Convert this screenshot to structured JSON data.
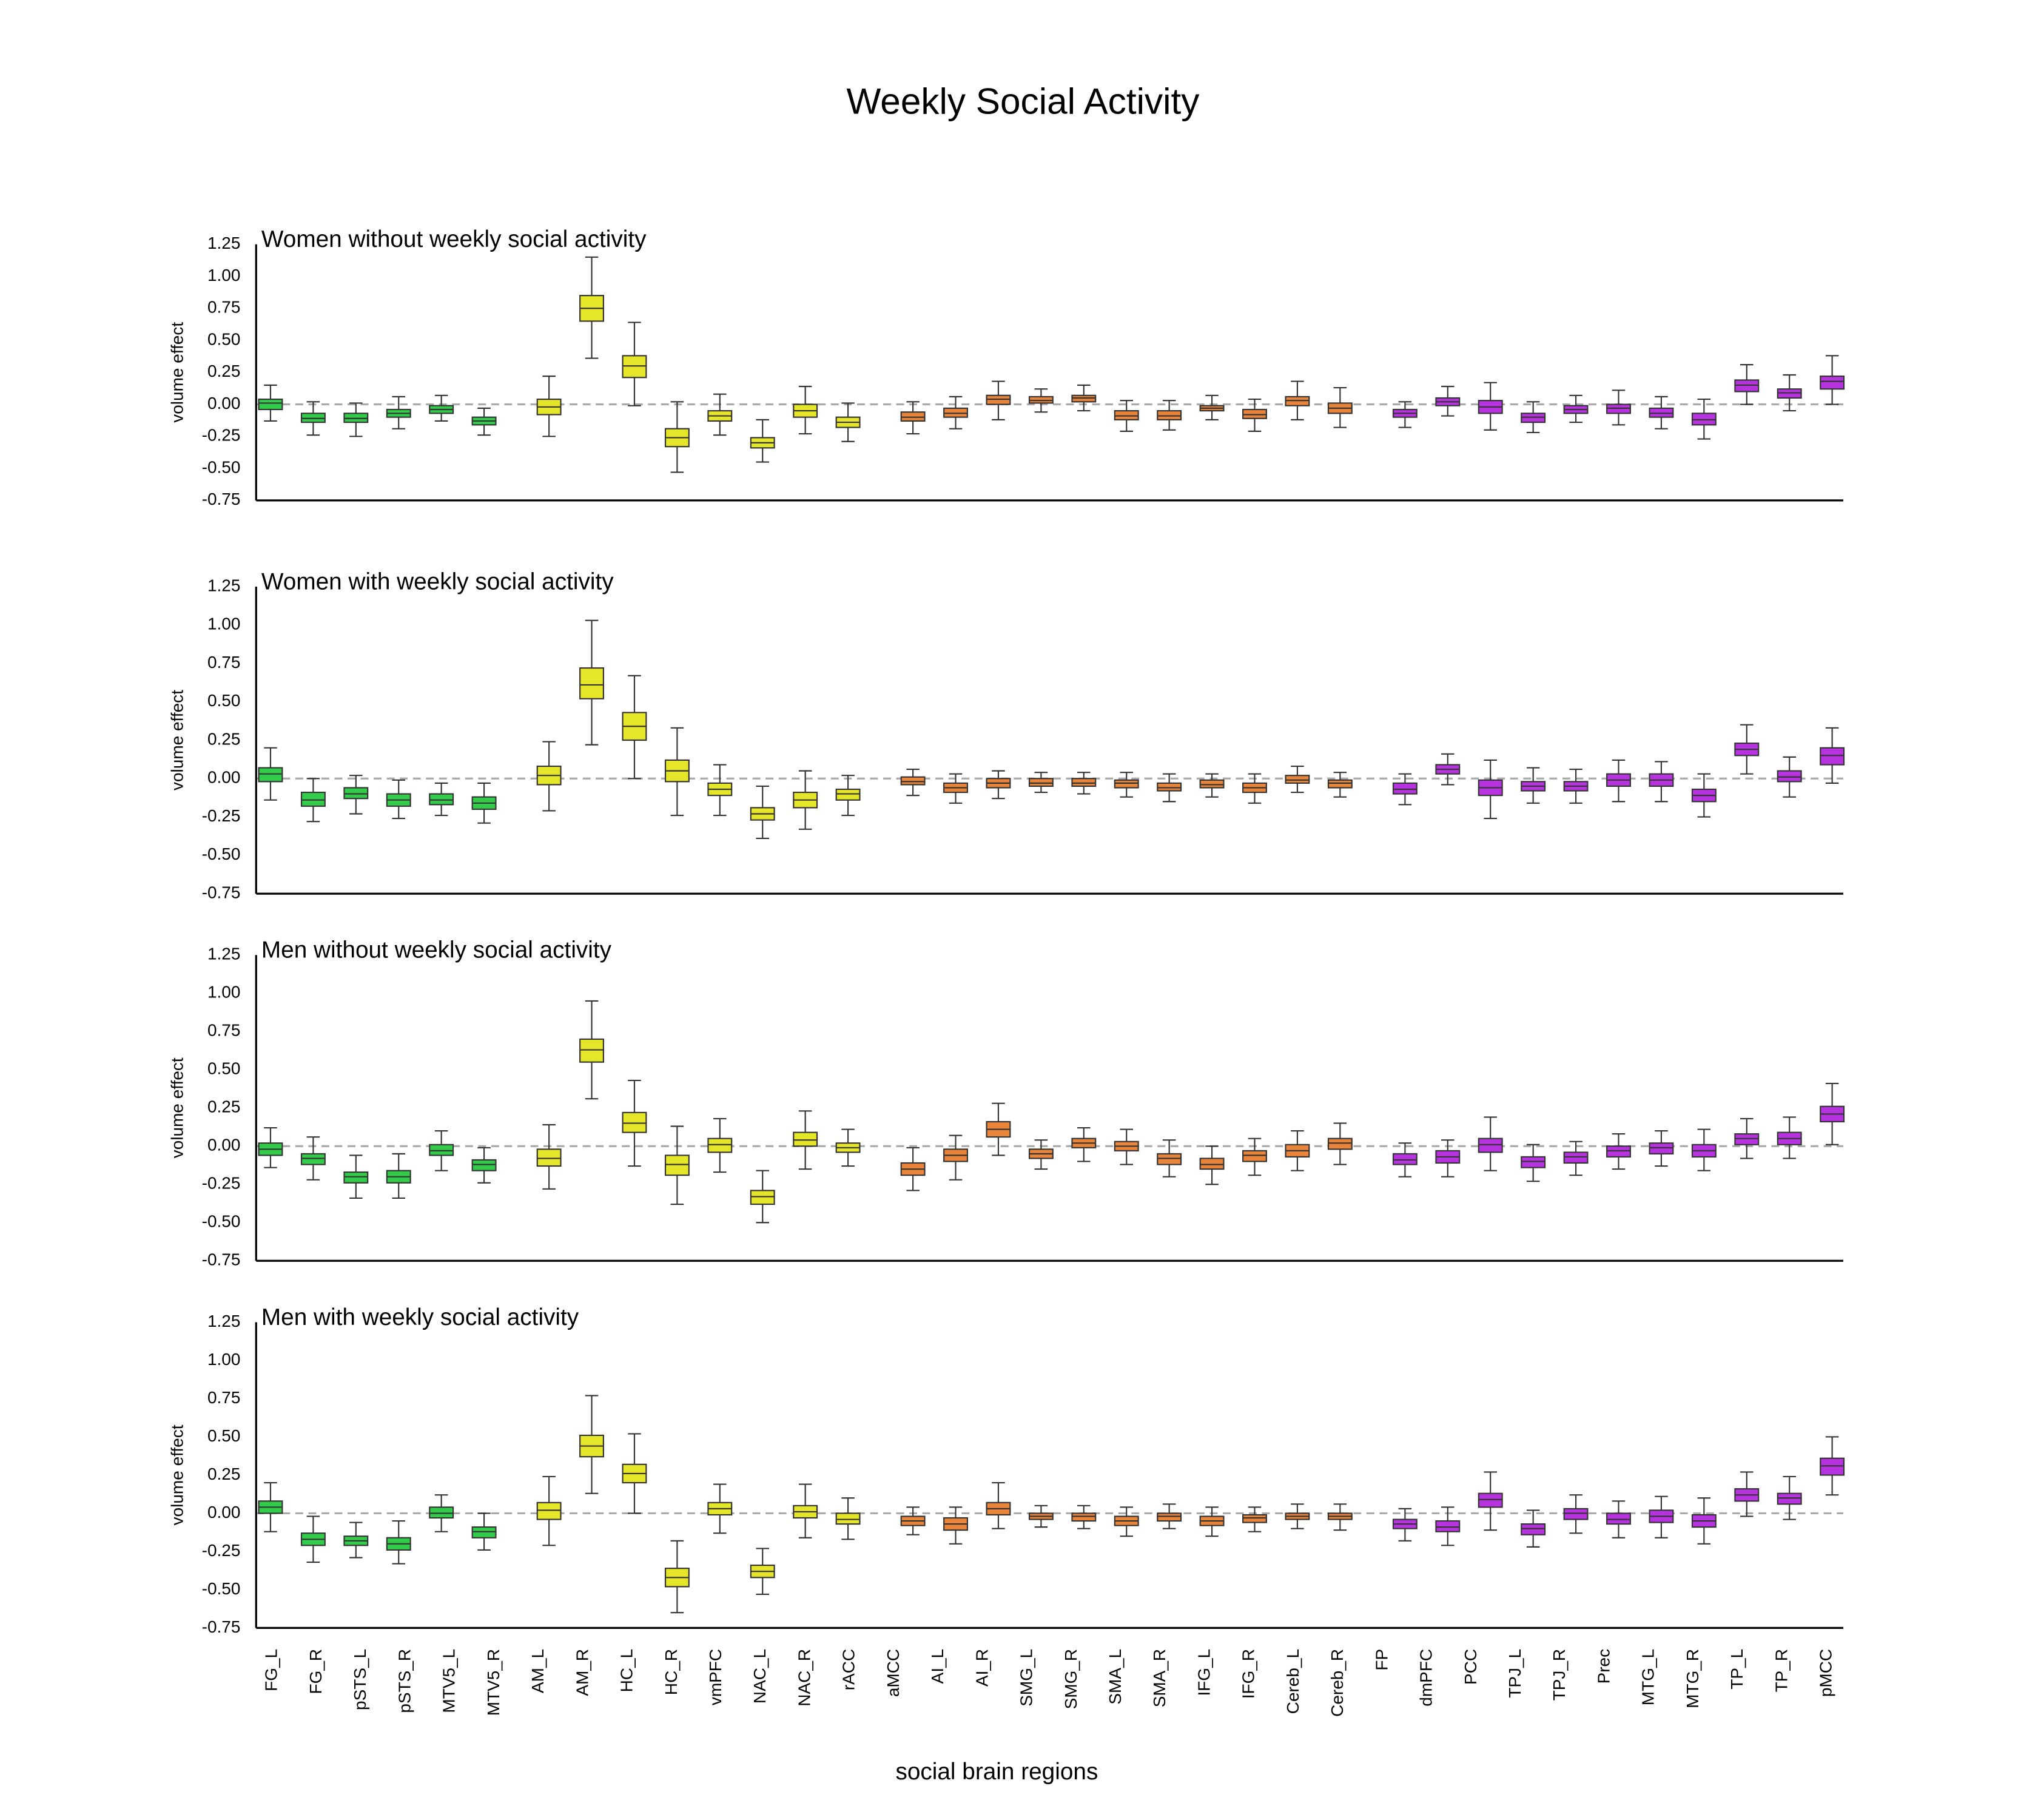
{
  "title": "Weekly Social Activity",
  "xlabel": "social brain regions",
  "categories": [
    "FG_L",
    "FG_R",
    "pSTS_L",
    "pSTS_R",
    "MTV5_L",
    "MTV5_R",
    "AM_L",
    "AM_R",
    "HC_L",
    "HC_R",
    "vmPFC",
    "NAC_L",
    "NAC_R",
    "rACC",
    "aMCC",
    "AI_L",
    "AI_R",
    "SMG_L",
    "SMG_R",
    "SMA_L",
    "SMA_R",
    "IFG_L",
    "IFG_R",
    "Cereb_L",
    "Cereb_R",
    "FP",
    "dmPFC",
    "PCC",
    "TPJ_L",
    "TPJ_R",
    "Prec",
    "MTG_L",
    "MTG_R",
    "TP_L",
    "TP_R",
    "pMCC"
  ],
  "colors": [
    "#33cc4a",
    "#33cc4a",
    "#33cc4a",
    "#33cc4a",
    "#33cc4a",
    "#33cc4a",
    "#e5e52a",
    "#e5e52a",
    "#e5e52a",
    "#e5e52a",
    "#e5e52a",
    "#e5e52a",
    "#e5e52a",
    "#e5e52a",
    "#e8853a",
    "#e8853a",
    "#e8853a",
    "#e8853a",
    "#e8853a",
    "#e8853a",
    "#e8853a",
    "#e8853a",
    "#e8853a",
    "#e8853a",
    "#e8853a",
    "#b833e0",
    "#b833e0",
    "#b833e0",
    "#b833e0",
    "#b833e0",
    "#b833e0",
    "#b833e0",
    "#b833e0",
    "#b833e0",
    "#b833e0",
    "#b833e0"
  ],
  "chart_data": [
    {
      "type": "box",
      "title": "Women without weekly social activity",
      "ylabel": "volume effect",
      "ylim": [
        -0.75,
        1.25
      ],
      "yticks": [
        -0.75,
        {
          "value": -0.5,
          "label": "-0.50"
        },
        -0.25,
        {
          "value": 0,
          "label": "0.00"
        },
        0.25,
        {
          "value": 0.5,
          "label": "0.50"
        },
        0.75,
        {
          "value": 1,
          "label": "1.00"
        },
        1.25
      ],
      "reference_line": 0,
      "whislo": [
        -0.13,
        -0.24,
        -0.25,
        -0.19,
        -0.13,
        -0.24,
        -0.25,
        0.36,
        -0.01,
        -0.53,
        -0.24,
        -0.45,
        -0.23,
        -0.29,
        -0.23,
        -0.19,
        -0.12,
        -0.06,
        -0.05,
        -0.21,
        -0.2,
        -0.12,
        -0.21,
        -0.12,
        -0.18,
        -0.18,
        -0.09,
        -0.2,
        -0.22,
        -0.14,
        -0.16,
        -0.19,
        -0.27,
        0,
        -0.05,
        0
      ],
      "q1": [
        -0.04,
        -0.14,
        -0.14,
        -0.1,
        -0.07,
        -0.16,
        -0.08,
        0.65,
        0.21,
        -0.33,
        -0.13,
        -0.34,
        -0.1,
        -0.18,
        -0.13,
        -0.1,
        0,
        0.01,
        0.02,
        -0.12,
        -0.12,
        -0.05,
        -0.11,
        -0.01,
        -0.07,
        -0.1,
        -0.01,
        -0.07,
        -0.14,
        -0.07,
        -0.07,
        -0.1,
        -0.16,
        0.1,
        0.05,
        0.12
      ],
      "median": [
        0.01,
        -0.11,
        -0.11,
        -0.07,
        -0.04,
        -0.13,
        -0.02,
        0.75,
        0.3,
        -0.26,
        -0.09,
        -0.3,
        -0.05,
        -0.14,
        -0.1,
        -0.07,
        0.04,
        0.03,
        0.05,
        -0.09,
        -0.09,
        -0.03,
        -0.08,
        0.03,
        -0.03,
        -0.07,
        0.02,
        -0.02,
        -0.1,
        -0.04,
        -0.03,
        -0.07,
        -0.12,
        0.15,
        0.09,
        0.18
      ],
      "q3": [
        0.04,
        -0.07,
        -0.07,
        -0.04,
        -0.01,
        -0.1,
        0.04,
        0.85,
        0.38,
        -0.19,
        -0.05,
        -0.26,
        0,
        -0.1,
        -0.06,
        -0.03,
        0.07,
        0.06,
        0.07,
        -0.05,
        -0.05,
        -0.01,
        -0.04,
        0.06,
        0.01,
        -0.04,
        0.05,
        0.03,
        -0.07,
        -0.01,
        0,
        -0.03,
        -0.07,
        0.19,
        0.12,
        0.22
      ],
      "whishi": [
        0.15,
        0.02,
        0.01,
        0.06,
        0.07,
        -0.03,
        0.22,
        1.15,
        0.64,
        0.02,
        0.08,
        -0.12,
        0.14,
        0.01,
        0.02,
        0.06,
        0.18,
        0.12,
        0.15,
        0.03,
        0.03,
        0.07,
        0.04,
        0.18,
        0.13,
        0.02,
        0.14,
        0.17,
        0.02,
        0.07,
        0.11,
        0.06,
        0.04,
        0.31,
        0.23,
        0.38
      ]
    },
    {
      "type": "box",
      "title": "Women with weekly social activity",
      "ylabel": "volume effect",
      "ylim": [
        -0.75,
        1.25
      ],
      "yticks": [
        -0.75,
        {
          "value": -0.5,
          "label": "-0.50"
        },
        -0.25,
        {
          "value": 0,
          "label": "0.00"
        },
        0.25,
        {
          "value": 0.5,
          "label": "0.50"
        },
        0.75,
        {
          "value": 1,
          "label": "1.00"
        },
        1.25
      ],
      "reference_line": 0,
      "whislo": [
        -0.14,
        -0.28,
        -0.23,
        -0.26,
        -0.24,
        -0.29,
        -0.21,
        0.22,
        0,
        -0.24,
        -0.24,
        -0.39,
        -0.33,
        -0.24,
        -0.11,
        -0.16,
        -0.13,
        -0.09,
        -0.1,
        -0.12,
        -0.15,
        -0.12,
        -0.16,
        -0.09,
        -0.12,
        -0.17,
        -0.04,
        -0.26,
        -0.16,
        -0.16,
        -0.15,
        -0.15,
        -0.25,
        0.03,
        -0.12,
        -0.03
      ],
      "q1": [
        -0.02,
        -0.18,
        -0.13,
        -0.18,
        -0.17,
        -0.2,
        -0.04,
        0.52,
        0.25,
        -0.02,
        -0.11,
        -0.27,
        -0.19,
        -0.14,
        -0.04,
        -0.09,
        -0.06,
        -0.05,
        -0.05,
        -0.06,
        -0.08,
        -0.06,
        -0.09,
        -0.03,
        -0.06,
        -0.1,
        0.03,
        -0.11,
        -0.08,
        -0.08,
        -0.05,
        -0.05,
        -0.15,
        0.15,
        -0.02,
        0.09
      ],
      "median": [
        0.03,
        -0.14,
        -0.1,
        -0.14,
        -0.14,
        -0.16,
        0.02,
        0.61,
        0.34,
        0.05,
        -0.07,
        -0.23,
        -0.14,
        -0.1,
        -0.02,
        -0.06,
        -0.03,
        -0.03,
        -0.03,
        -0.03,
        -0.06,
        -0.04,
        -0.06,
        -0.01,
        -0.03,
        -0.07,
        0.06,
        -0.06,
        -0.05,
        -0.05,
        -0.01,
        -0.01,
        -0.11,
        0.19,
        0.01,
        0.15
      ],
      "q3": [
        0.07,
        -0.09,
        -0.06,
        -0.1,
        -0.1,
        -0.12,
        0.08,
        0.72,
        0.43,
        0.12,
        -0.03,
        -0.19,
        -0.09,
        -0.07,
        0.01,
        -0.03,
        0,
        0,
        0,
        -0.01,
        -0.03,
        -0.01,
        -0.03,
        0.02,
        -0.01,
        -0.03,
        0.09,
        -0.01,
        -0.02,
        -0.02,
        0.03,
        0.03,
        -0.07,
        0.23,
        0.05,
        0.2
      ],
      "whishi": [
        0.2,
        0,
        0.02,
        -0.01,
        -0.03,
        -0.03,
        0.24,
        1.03,
        0.67,
        0.33,
        0.09,
        -0.05,
        0.05,
        0.02,
        0.06,
        0.03,
        0.05,
        0.04,
        0.04,
        0.04,
        0.03,
        0.03,
        0.03,
        0.08,
        0.04,
        0.03,
        0.16,
        0.12,
        0.07,
        0.06,
        0.12,
        0.11,
        0.03,
        0.35,
        0.14,
        0.33
      ]
    },
    {
      "type": "box",
      "title": "Men without weekly social activity",
      "ylabel": "volume effect",
      "ylim": [
        -0.75,
        1.25
      ],
      "yticks": [
        -0.75,
        {
          "value": -0.5,
          "label": "-0.50"
        },
        -0.25,
        {
          "value": 0,
          "label": "0.00"
        },
        0.25,
        {
          "value": 0.5,
          "label": "0.50"
        },
        0.75,
        {
          "value": 1,
          "label": "1.00"
        },
        1.25
      ],
      "reference_line": 0,
      "whislo": [
        -0.14,
        -0.22,
        -0.34,
        -0.34,
        -0.16,
        -0.24,
        -0.28,
        0.31,
        -0.13,
        -0.38,
        -0.17,
        -0.5,
        -0.15,
        -0.13,
        -0.29,
        -0.22,
        -0.06,
        -0.15,
        -0.1,
        -0.12,
        -0.2,
        -0.25,
        -0.19,
        -0.16,
        -0.12,
        -0.2,
        -0.2,
        -0.16,
        -0.23,
        -0.19,
        -0.15,
        -0.13,
        -0.16,
        -0.08,
        -0.08,
        0.01
      ],
      "q1": [
        -0.06,
        -0.12,
        -0.24,
        -0.24,
        -0.06,
        -0.16,
        -0.13,
        0.55,
        0.09,
        -0.19,
        -0.04,
        -0.38,
        0,
        -0.04,
        -0.19,
        -0.1,
        0.06,
        -0.08,
        -0.01,
        -0.03,
        -0.12,
        -0.15,
        -0.1,
        -0.07,
        -0.02,
        -0.12,
        -0.11,
        -0.04,
        -0.14,
        -0.11,
        -0.07,
        -0.05,
        -0.07,
        0.01,
        0.01,
        0.16
      ],
      "median": [
        -0.02,
        -0.08,
        -0.2,
        -0.2,
        -0.03,
        -0.12,
        -0.08,
        0.63,
        0.15,
        -0.12,
        0.01,
        -0.33,
        0.04,
        -0.01,
        -0.15,
        -0.06,
        0.11,
        -0.05,
        0.02,
        0,
        -0.08,
        -0.12,
        -0.06,
        -0.03,
        0.02,
        -0.09,
        -0.07,
        0.01,
        -0.1,
        -0.07,
        -0.03,
        -0.01,
        -0.03,
        0.05,
        0.05,
        0.21
      ],
      "q3": [
        0.02,
        -0.05,
        -0.17,
        -0.16,
        0.01,
        -0.09,
        -0.02,
        0.7,
        0.22,
        -0.06,
        0.05,
        -0.29,
        0.09,
        0.02,
        -0.11,
        -0.02,
        0.16,
        -0.02,
        0.05,
        0.03,
        -0.05,
        -0.08,
        -0.03,
        0.01,
        0.05,
        -0.05,
        -0.03,
        0.05,
        -0.07,
        -0.04,
        0,
        0.02,
        0.01,
        0.08,
        0.09,
        0.26
      ],
      "whishi": [
        0.12,
        0.06,
        -0.06,
        -0.05,
        0.1,
        -0.01,
        0.14,
        0.95,
        0.43,
        0.13,
        0.18,
        -0.16,
        0.23,
        0.11,
        -0.01,
        0.07,
        0.28,
        0.04,
        0.12,
        0.11,
        0.04,
        0,
        0.05,
        0.1,
        0.15,
        0.02,
        0.04,
        0.19,
        0.01,
        0.03,
        0.08,
        0.1,
        0.11,
        0.18,
        0.19,
        0.41
      ]
    },
    {
      "type": "box",
      "title": "Men with weekly social activity",
      "ylabel": "volume effect",
      "ylim": [
        -0.75,
        1.25
      ],
      "yticks": [
        -0.75,
        {
          "value": -0.5,
          "label": "-0.50"
        },
        -0.25,
        {
          "value": 0,
          "label": "0.00"
        },
        0.25,
        {
          "value": 0.5,
          "label": "0.50"
        },
        0.75,
        {
          "value": 1,
          "label": "1.00"
        },
        1.25
      ],
      "reference_line": 0,
      "whislo": [
        -0.12,
        -0.32,
        -0.29,
        -0.33,
        -0.12,
        -0.24,
        -0.21,
        0.13,
        0,
        -0.65,
        -0.13,
        -0.53,
        -0.16,
        -0.17,
        -0.14,
        -0.2,
        -0.1,
        -0.09,
        -0.1,
        -0.15,
        -0.1,
        -0.15,
        -0.12,
        -0.1,
        -0.11,
        -0.18,
        -0.21,
        -0.11,
        -0.22,
        -0.13,
        -0.16,
        -0.16,
        -0.2,
        -0.02,
        -0.04,
        0.12
      ],
      "q1": [
        0,
        -0.21,
        -0.21,
        -0.24,
        -0.03,
        -0.16,
        -0.04,
        0.37,
        0.2,
        -0.48,
        -0.01,
        -0.42,
        -0.03,
        -0.07,
        -0.08,
        -0.11,
        -0.01,
        -0.04,
        -0.05,
        -0.08,
        -0.05,
        -0.08,
        -0.06,
        -0.04,
        -0.04,
        -0.1,
        -0.12,
        0.04,
        -0.14,
        -0.04,
        -0.07,
        -0.06,
        -0.09,
        0.08,
        0.06,
        0.25
      ],
      "median": [
        0.04,
        -0.17,
        -0.18,
        -0.2,
        0,
        -0.12,
        0.02,
        0.44,
        0.26,
        -0.42,
        0.03,
        -0.38,
        0.01,
        -0.04,
        -0.05,
        -0.07,
        0.03,
        -0.02,
        -0.02,
        -0.05,
        -0.02,
        -0.05,
        -0.03,
        -0.02,
        -0.02,
        -0.07,
        -0.09,
        0.09,
        -0.1,
        0,
        -0.04,
        -0.02,
        -0.05,
        0.12,
        0.1,
        0.31
      ],
      "q3": [
        0.08,
        -0.13,
        -0.15,
        -0.16,
        0.04,
        -0.09,
        0.07,
        0.51,
        0.32,
        -0.36,
        0.07,
        -0.34,
        0.05,
        0,
        -0.02,
        -0.03,
        0.07,
        0,
        0,
        -0.02,
        0,
        -0.02,
        -0.01,
        0,
        0,
        -0.04,
        -0.05,
        0.13,
        -0.07,
        0.03,
        0,
        0.02,
        -0.01,
        0.16,
        0.13,
        0.36
      ],
      "whishi": [
        0.2,
        -0.02,
        -0.06,
        -0.05,
        0.12,
        0,
        0.24,
        0.77,
        0.52,
        -0.18,
        0.19,
        -0.23,
        0.19,
        0.1,
        0.04,
        0.04,
        0.2,
        0.05,
        0.05,
        0.04,
        0.06,
        0.04,
        0.04,
        0.06,
        0.06,
        0.03,
        0.04,
        0.27,
        0.02,
        0.12,
        0.08,
        0.11,
        0.1,
        0.27,
        0.24,
        0.5
      ]
    }
  ]
}
